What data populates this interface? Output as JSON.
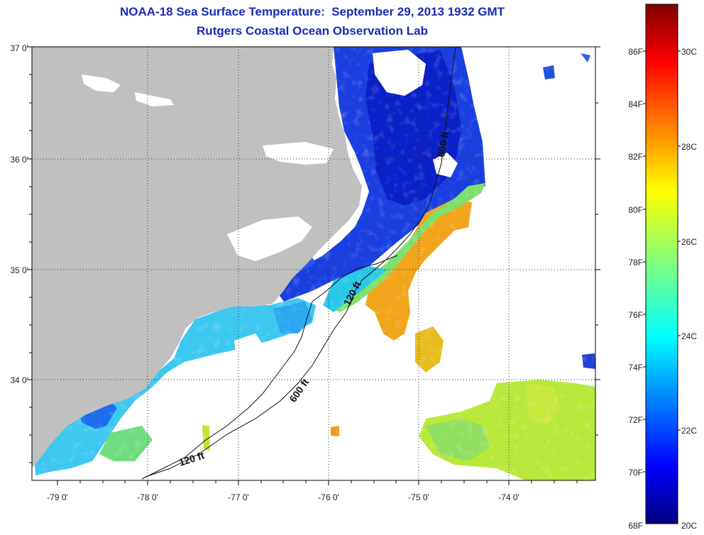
{
  "title": "NOAA-18 Sea Surface Temperature:  September 29, 2013 1932 GMT",
  "subtitle": "Rutgers Coastal Ocean Observation Lab",
  "map": {
    "lon_ticks": [
      "-79 0'",
      "-78 0'",
      "-77 0'",
      "-76 0'",
      "-75 0'",
      "-74 0'"
    ],
    "lat_ticks": [
      "37 0'",
      "36 0'",
      "35 0'",
      "34 0'"
    ],
    "contour_labels": [
      "600 ft",
      "120 ft",
      "600 ft",
      "120 ft"
    ],
    "land_color": "#c0c0c0",
    "no_data_color": "#ffffff"
  },
  "colorbar": {
    "fahrenheit": [
      "86F",
      "84F",
      "82F",
      "80F",
      "78F",
      "76F",
      "74F",
      "72F",
      "70F",
      "68F"
    ],
    "celsius": [
      "30C",
      "28C",
      "26C",
      "24C",
      "22C",
      "20C"
    ],
    "colormap": "jet",
    "range_c": [
      20,
      31
    ]
  }
}
